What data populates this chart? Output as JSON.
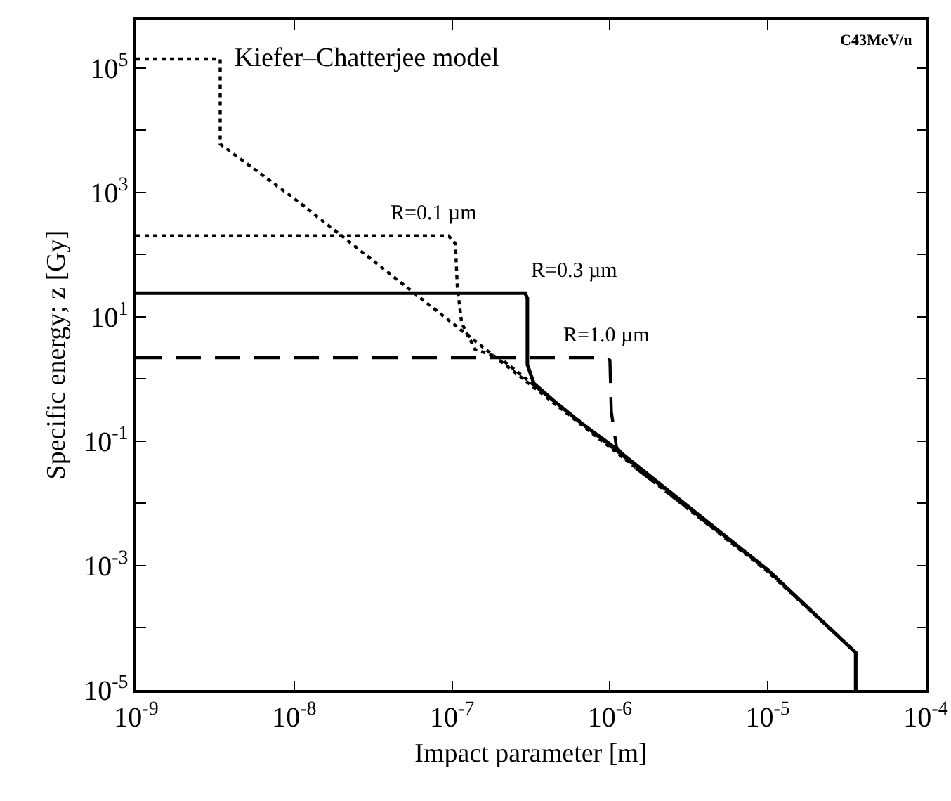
{
  "chart_data": {
    "type": "line",
    "xlabel": "Impact parameter [m]",
    "ylabel": "Specific energy; z [Gy]",
    "log": "xy",
    "grid": false,
    "marker": "none",
    "annotations": [
      "C43MeV/u",
      {
        "text": "Kiefer–Chatterjee model",
        "x": 3.4e-09,
        "y": 140000
      },
      {
        "text": "R=0.1 µm",
        "x": 9.5e-08,
        "y": 200
      },
      {
        "text": "R=0.3 µm",
        "x": 2.9e-07,
        "y": 24
      },
      {
        "text": "R=1.0 µm",
        "x": 9.5e-07,
        "y": 2.2
      }
    ],
    "xlim": [
      1e-09,
      0.0001
    ],
    "ylim": [
      1e-05,
      600000.0
    ],
    "xticks": [
      {
        "value": 1e-09,
        "label": "10$^{-9}$"
      },
      {
        "value": 1e-08,
        "label": "10$^{-8}$"
      },
      {
        "value": 1e-07,
        "label": "10$^{-7}$"
      },
      {
        "value": 1e-06,
        "label": "10$^{-6}$"
      },
      {
        "value": 1e-05,
        "label": "10$^{-5}$"
      },
      {
        "value": 0.0001,
        "label": "10$^{-4}$"
      }
    ],
    "yticks": [
      {
        "value": 1e-05,
        "label": "10$^{-5}$"
      },
      {
        "value": 0.0001,
        "label": null
      },
      {
        "value": 0.001,
        "label": "10$^{-3}$"
      },
      {
        "value": 0.01,
        "label": null
      },
      {
        "value": 0.1,
        "label": "10$^{-1}$"
      },
      {
        "value": 1,
        "label": null
      },
      {
        "value": 10,
        "label": "10$^{1}$"
      },
      {
        "value": 100,
        "label": null
      },
      {
        "value": 1000,
        "label": "10$^{3}$"
      },
      {
        "value": 10000,
        "label": null
      },
      {
        "value": 100000,
        "label": "10$^{5}$"
      }
    ],
    "series": [
      {
        "color": "#000000",
        "line_style": "dotted",
        "x": [
          1e-09,
          3.4e-09,
          3.4e-09,
          1e-08,
          1e-07,
          1e-06,
          1e-05,
          3.6e-05,
          3.6e-05
        ],
        "values": [
          140000,
          140000,
          6000,
          800,
          8,
          0.08,
          0.0008,
          4e-05,
          1e-05
        ]
      },
      {
        "color": "#000000",
        "line_style": "dotted",
        "x": [
          1e-09,
          9.5e-08,
          1.05e-07,
          1.08e-07,
          1.15e-07,
          1.4e-07,
          2e-07,
          1e-06,
          1e-05,
          3.6e-05,
          3.6e-05
        ],
        "values": [
          200,
          200,
          150,
          30,
          8,
          3,
          2.2,
          0.085,
          0.00085,
          4e-05,
          1e-05
        ]
      },
      {
        "color": "#000000",
        "line_style": "solid",
        "x": [
          1e-09,
          2.9e-07,
          3e-07,
          3e-07,
          3.3e-07,
          4.4e-07,
          6.5e-07,
          1e-06,
          1e-05,
          3.6e-05,
          3.6e-05
        ],
        "values": [
          24,
          24,
          20,
          1.7,
          0.85,
          0.45,
          0.2,
          0.09,
          0.00085,
          4e-05,
          1e-05
        ]
      },
      {
        "color": "#000000",
        "line_style": "dashed",
        "x": [
          1e-09,
          9.5e-07,
          1e-06,
          1.02e-06,
          1.1e-06,
          1.4e-06,
          2e-06,
          1e-05,
          3.6e-05,
          3.6e-05
        ],
        "values": [
          2.2,
          2.2,
          2,
          0.3,
          0.08,
          0.04,
          0.02,
          0.00085,
          4e-05,
          1e-05
        ]
      }
    ]
  }
}
